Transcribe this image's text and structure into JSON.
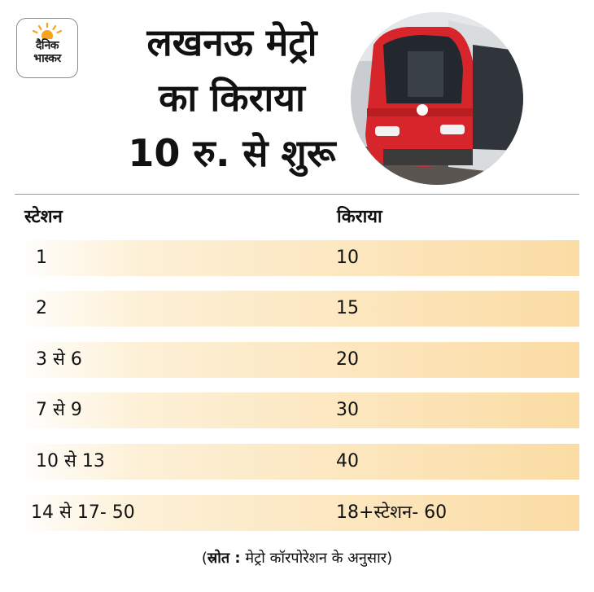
{
  "logo": {
    "line1": "दैनिक",
    "line2": "भास्कर",
    "accent_color": "#f7a21b"
  },
  "headline": {
    "line1": "लखनऊ मेट्रो",
    "line2": "का किराया",
    "line3": "10 रु. से शुरू"
  },
  "photo": {
    "subject": "metro-train-icon",
    "accent_color": "#d7262b"
  },
  "table": {
    "header": {
      "station": "स्टेशन",
      "fare": "किराया"
    },
    "rows": [
      {
        "station": "1",
        "fare": "10"
      },
      {
        "station": "2",
        "fare": "15"
      },
      {
        "station": "3 से 6",
        "fare": "20"
      },
      {
        "station": "7 से 9",
        "fare": "30"
      },
      {
        "station": "10 से 13",
        "fare": "40"
      },
      {
        "station": "14 से 17- 50",
        "fare": "18+स्टेशन- 60"
      }
    ],
    "row_gradient_color": "#fbdca4"
  },
  "source": {
    "open": "(",
    "label": "स्रोत :",
    "text": " मेट्रो कॉरपोरेशन के अनुसार",
    "close": ")"
  }
}
